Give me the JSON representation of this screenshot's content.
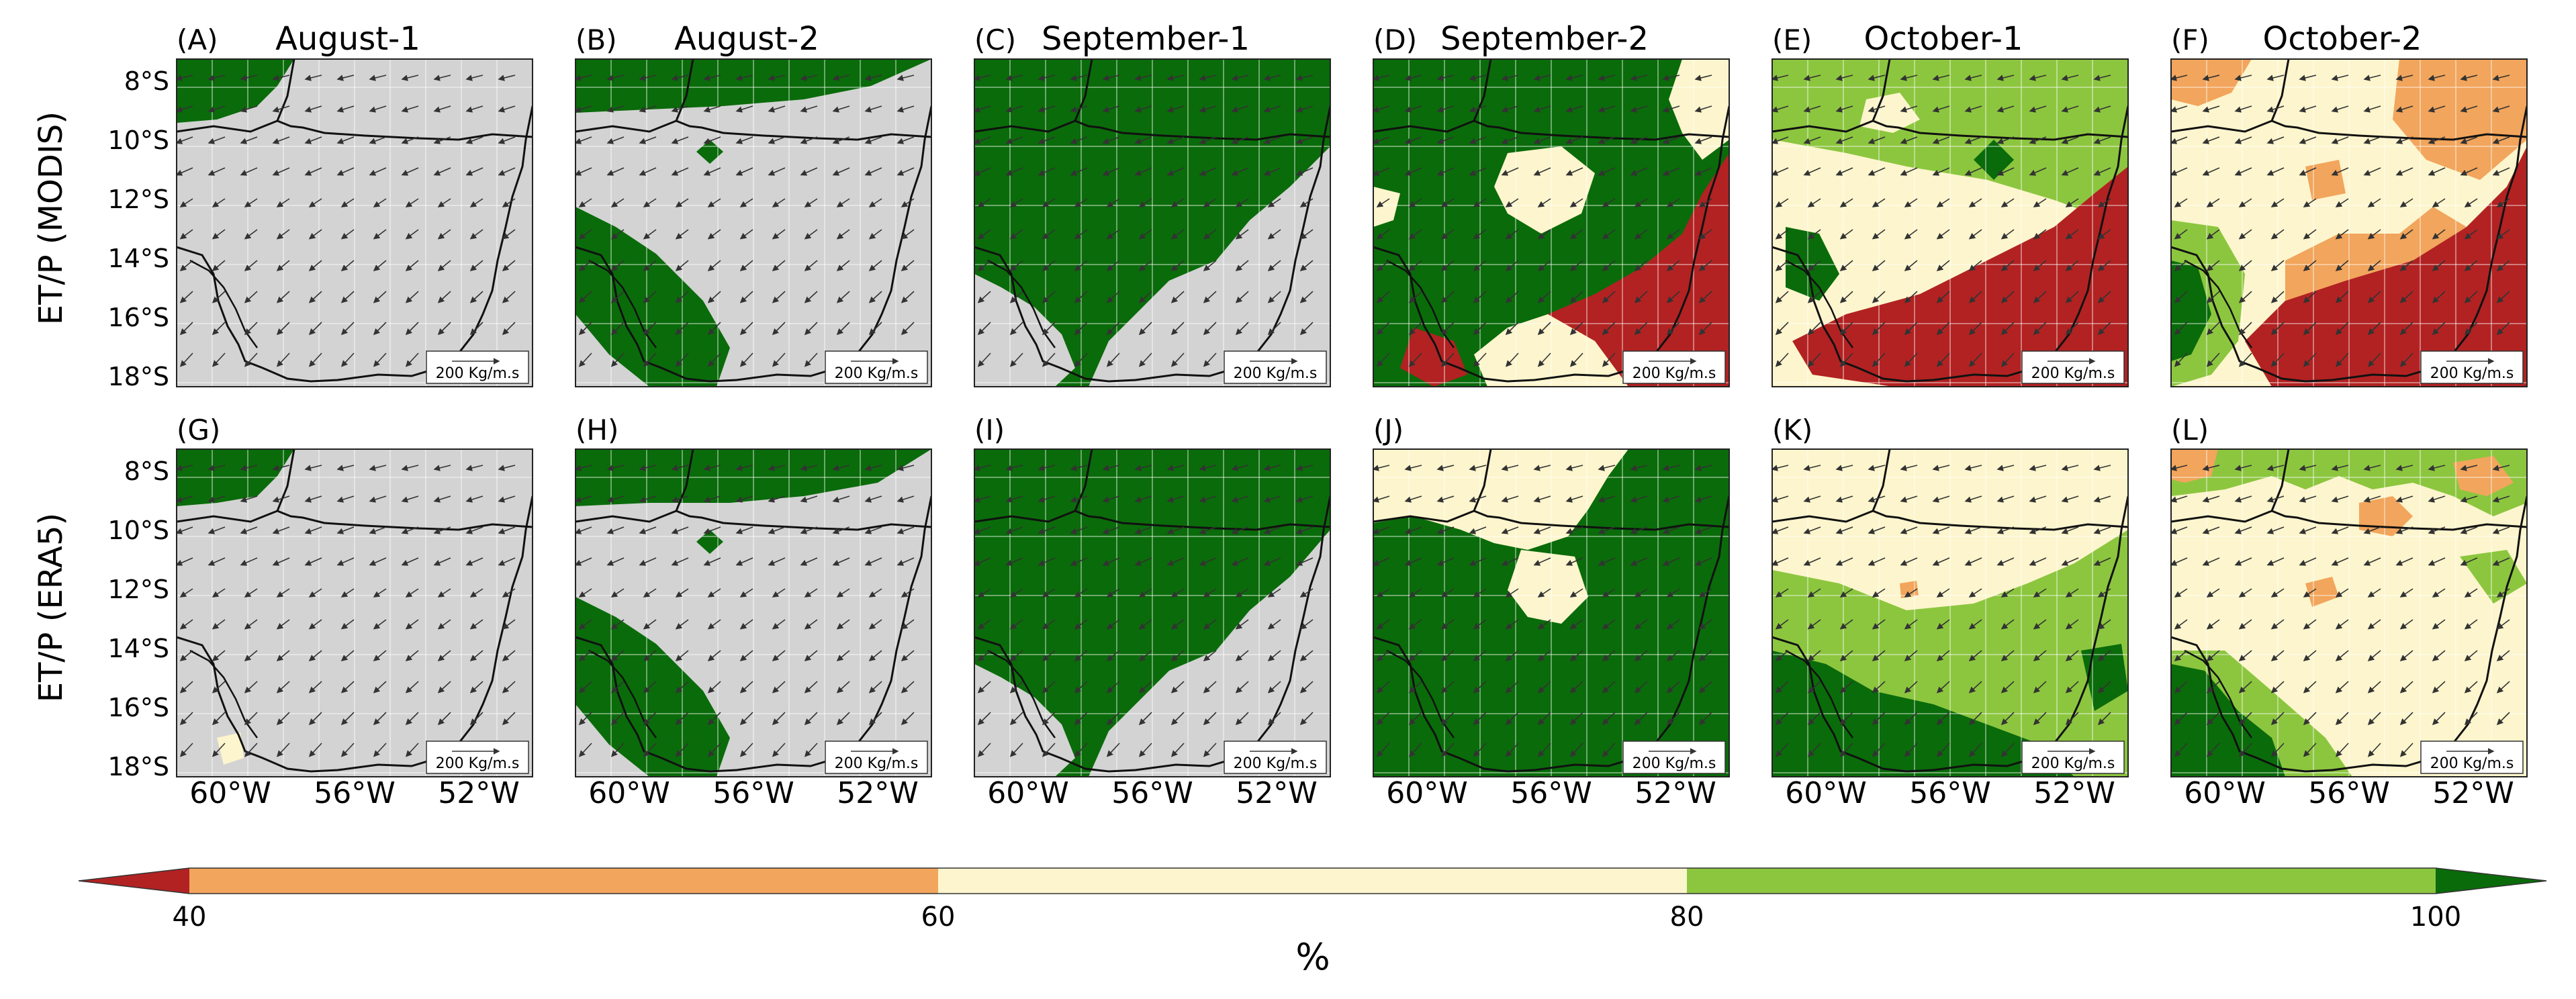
{
  "row_labels": [
    "ET/P (MODIS)",
    "ET/P (ERA5)"
  ],
  "panels": [
    {
      "letter": "(A)",
      "title": "August-1",
      "dominant": "gray"
    },
    {
      "letter": "(B)",
      "title": "August-2",
      "dominant": "gray"
    },
    {
      "letter": "(C)",
      "title": "September-1",
      "dominant": "green"
    },
    {
      "letter": "(D)",
      "title": "September-2",
      "dominant": "green"
    },
    {
      "letter": "(E)",
      "title": "October-1",
      "dominant": "mixed"
    },
    {
      "letter": "(F)",
      "title": "October-2",
      "dominant": "mixed"
    },
    {
      "letter": "(G)",
      "title": "",
      "dominant": "gray"
    },
    {
      "letter": "(H)",
      "title": "",
      "dominant": "gray"
    },
    {
      "letter": "(I)",
      "title": "",
      "dominant": "green"
    },
    {
      "letter": "(J)",
      "title": "",
      "dominant": "green"
    },
    {
      "letter": "(K)",
      "title": "",
      "dominant": "lightgreen"
    },
    {
      "letter": "(L)",
      "title": "",
      "dominant": "cream"
    }
  ],
  "lat_ticks": [
    "8°S",
    "10°S",
    "12°S",
    "14°S",
    "16°S",
    "18°S"
  ],
  "lon_ticks": [
    "60°W",
    "56°W",
    "52°W"
  ],
  "vector_key": "200 Kg/m.s",
  "colorbar": {
    "ticks": [
      "40",
      "60",
      "80",
      "100"
    ],
    "label": "%",
    "colors": {
      "under": "#b22222",
      "b40_60": "#f2a55c",
      "b60_80": "#fdf5cd",
      "b80_100": "#8cc63f",
      "over": "#0a6b0a"
    }
  },
  "colors": {
    "dry_season_mask": "#d3d3d3",
    "dark_green": "#0a6b0a",
    "light_green": "#8cc63f",
    "cream": "#fdf5cd",
    "orange": "#f2a55c",
    "red": "#b22222"
  }
}
